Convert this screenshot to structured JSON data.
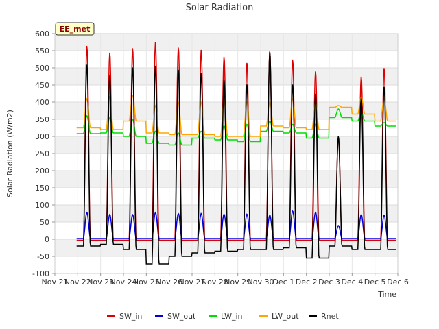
{
  "chart_data": {
    "type": "line",
    "title": "Solar Radiation",
    "xlabel": "Time",
    "ylabel": "Solar Radiation (W/m2)",
    "site_badge": "EE_met",
    "ylim": [
      -100,
      600
    ],
    "xlim": [
      0,
      15
    ],
    "y_ticks": [
      -100,
      -50,
      0,
      50,
      100,
      150,
      200,
      250,
      300,
      350,
      400,
      450,
      500,
      550,
      600
    ],
    "x_ticks": [
      {
        "value": 0,
        "label": "Nov 21"
      },
      {
        "value": 1,
        "label": "Nov 22"
      },
      {
        "value": 2,
        "label": "Nov 23"
      },
      {
        "value": 3,
        "label": "Nov 24"
      },
      {
        "value": 4,
        "label": "Nov 25"
      },
      {
        "value": 5,
        "label": "Nov 26"
      },
      {
        "value": 6,
        "label": "Nov 27"
      },
      {
        "value": 7,
        "label": "Nov 28"
      },
      {
        "value": 8,
        "label": "Nov 29"
      },
      {
        "value": 9,
        "label": "Nov 30"
      },
      {
        "value": 10,
        "label": "Dec 1"
      },
      {
        "value": 11,
        "label": "Dec 2"
      },
      {
        "value": 12,
        "label": "Dec 3"
      },
      {
        "value": 13,
        "label": "Dec 4"
      },
      {
        "value": 14,
        "label": "Dec 5"
      },
      {
        "value": 15,
        "label": "Dec 6"
      }
    ],
    "grid": true,
    "legend_position": "bottom",
    "series": [
      {
        "name": "SW_in",
        "color": "#dd0000",
        "daily_peaks": [
          565,
          545,
          558,
          575,
          560,
          553,
          533,
          515,
          548,
          525,
          490,
          300,
          475,
          500
        ],
        "night_value": -3
      },
      {
        "name": "SW_out",
        "color": "#0000dd",
        "daily_peaks": [
          78,
          72,
          72,
          78,
          75,
          75,
          73,
          73,
          70,
          82,
          78,
          40,
          72,
          70
        ],
        "night_value": 2
      },
      {
        "name": "LW_in",
        "color": "#00dd00",
        "daily_peaks": [
          360,
          355,
          350,
          315,
          310,
          315,
          330,
          335,
          345,
          335,
          335,
          380,
          370,
          340
        ],
        "night_values": [
          308,
          310,
          300,
          280,
          275,
          295,
          290,
          285,
          315,
          310,
          295,
          355,
          345,
          330
        ]
      },
      {
        "name": "LW_out",
        "color": "#ffa500",
        "daily_peaks": [
          410,
          415,
          420,
          390,
          400,
          400,
          405,
          400,
          400,
          410,
          400,
          390,
          415,
          410
        ],
        "night_values": [
          325,
          320,
          345,
          310,
          305,
          305,
          300,
          300,
          330,
          325,
          320,
          385,
          365,
          345
        ]
      },
      {
        "name": "Rnet",
        "color": "#000000",
        "daily_peaks": [
          510,
          478,
          502,
          507,
          495,
          485,
          465,
          452,
          548,
          452,
          425,
          300,
          415,
          445
        ],
        "night_values": [
          -20,
          -15,
          -30,
          -72,
          -50,
          -40,
          -35,
          -30,
          -30,
          -25,
          -55,
          -20,
          -30,
          -30
        ]
      }
    ]
  }
}
